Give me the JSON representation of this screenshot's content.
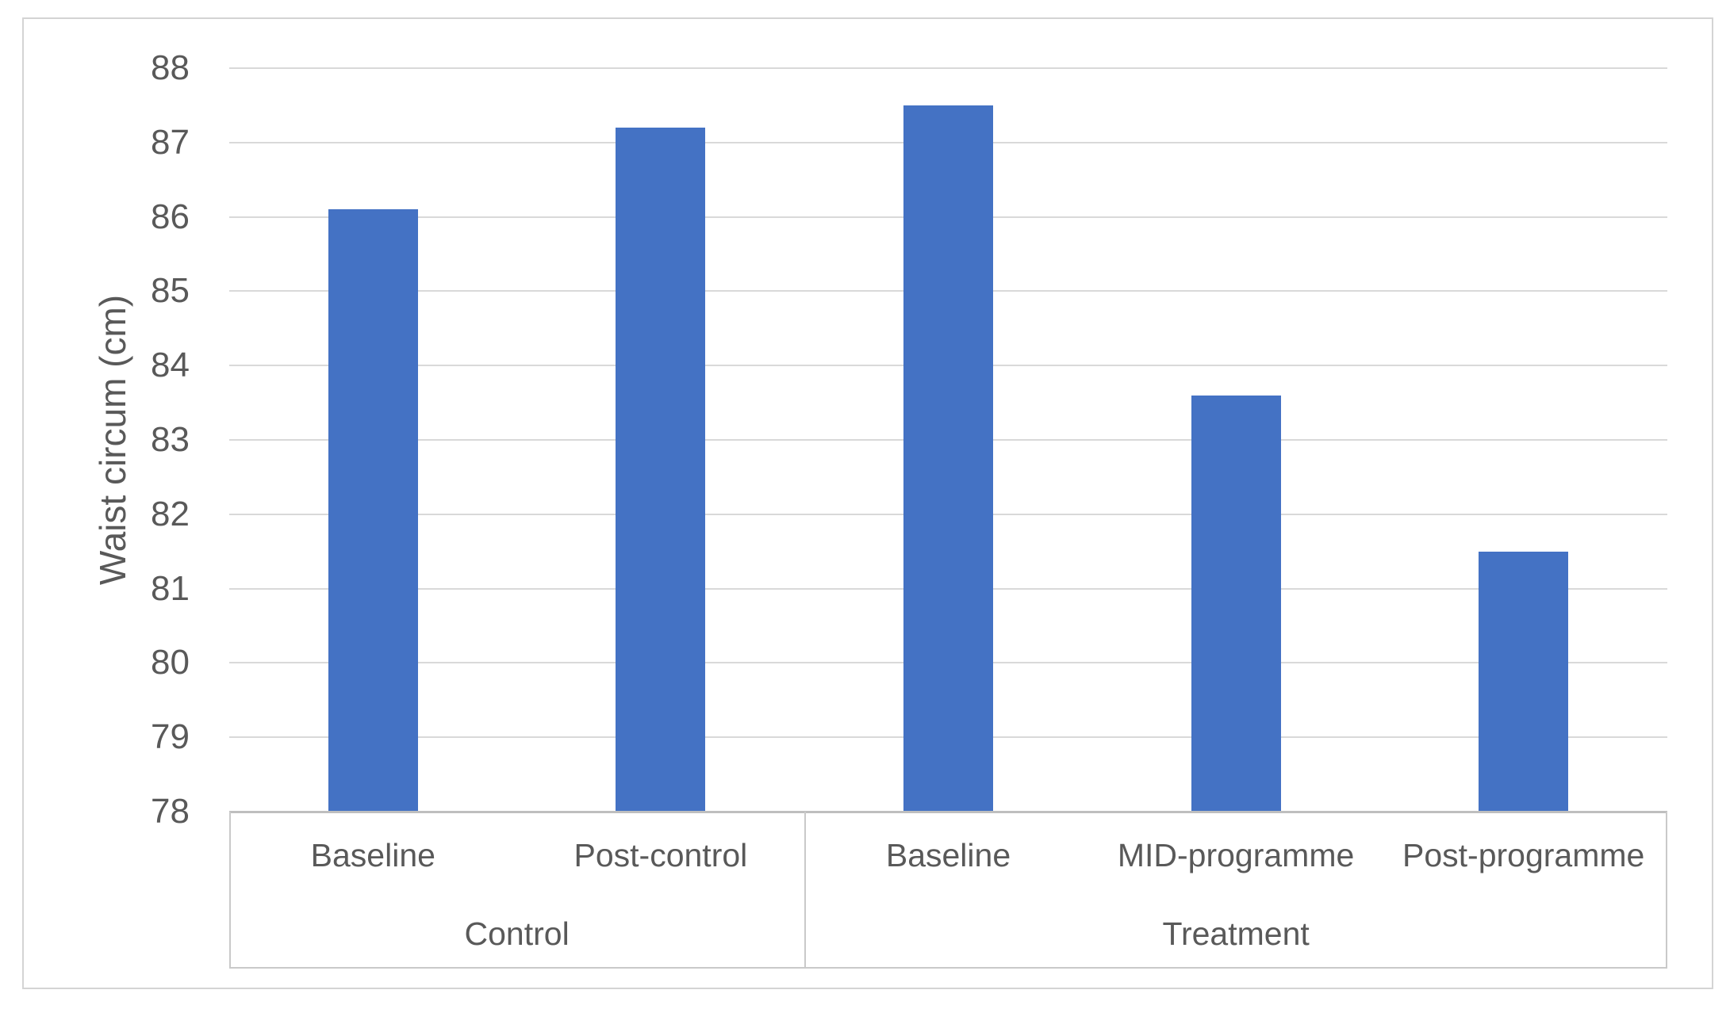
{
  "chart_data": {
    "type": "bar",
    "title": "",
    "ylabel": "Waist circum (cm)",
    "xlabel": "",
    "ylim": [
      78,
      88
    ],
    "ytick_interval": 1,
    "yticks": [
      78,
      79,
      80,
      81,
      82,
      83,
      84,
      85,
      86,
      87,
      88
    ],
    "grid": "horizontal",
    "legend": "none",
    "groups": [
      {
        "label": "Control",
        "categories": [
          "Baseline",
          "Post-control"
        ],
        "values": [
          86.1,
          87.2
        ]
      },
      {
        "label": "Treatment",
        "categories": [
          "Baseline",
          "MID-programme",
          "Post-programme"
        ],
        "values": [
          87.5,
          83.6,
          81.5
        ]
      }
    ],
    "colors": {
      "bar": "#4472C4",
      "gridline": "#D9D9D9",
      "axis_line": "#BFBFBF",
      "label_box_border": "#C9C9C9",
      "text": "#595959",
      "frame_border": "#D4D4D4",
      "background": "#FFFFFF"
    }
  }
}
